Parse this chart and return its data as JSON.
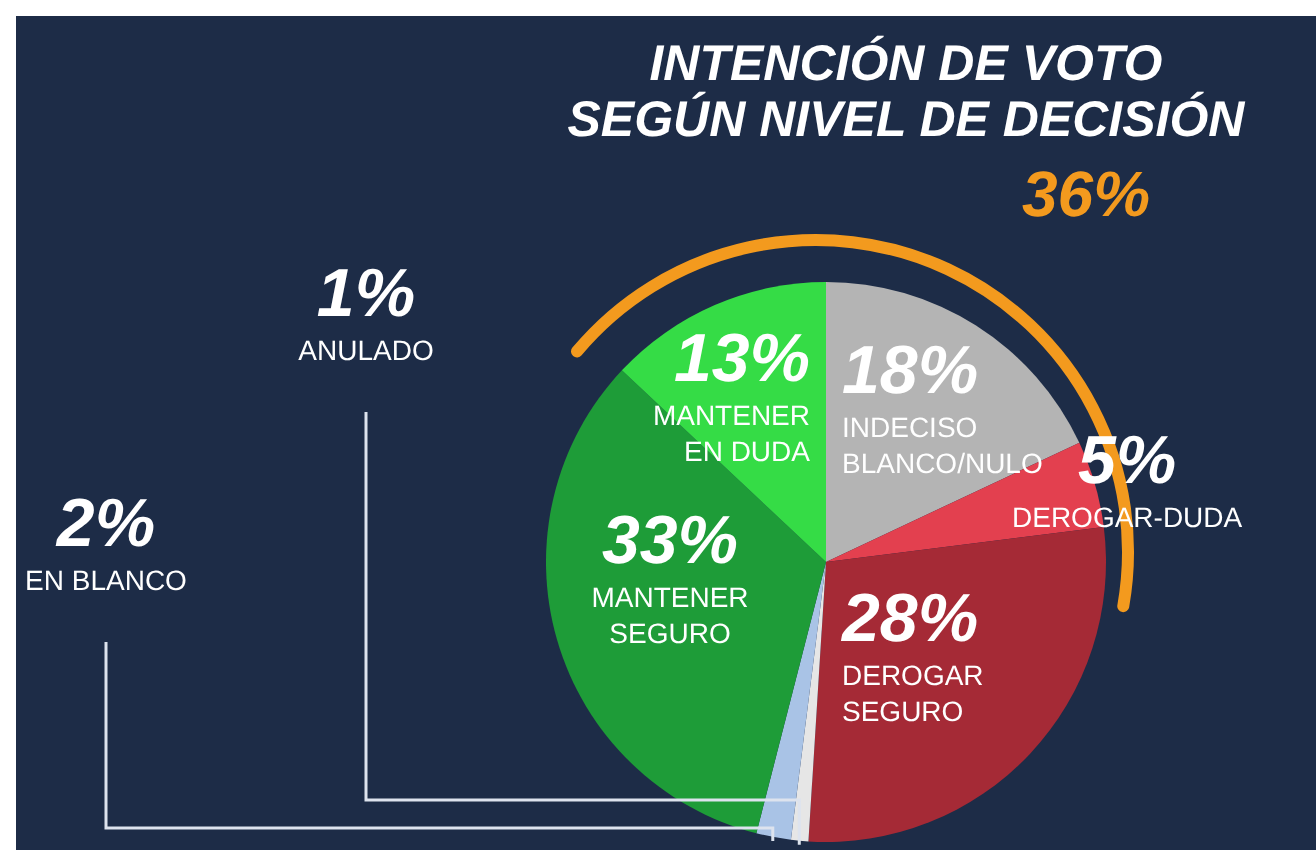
{
  "chart_data": {
    "type": "pie",
    "title": "INTENCIÓN DE VOTO\nSEGÚN NIVEL DE DECISIÓN",
    "categories": [
      "INDECISO\nBLANCO/NULO",
      "DEROGAR-DUDA",
      "DEROGAR\nSEGURO",
      "ANULADO",
      "EN BLANCO",
      "MANTENER\nSEGURO",
      "MANTENER\nEN DUDA"
    ],
    "values": [
      18,
      5,
      28,
      1,
      2,
      33,
      13
    ],
    "value_labels": [
      "18%",
      "5%",
      "28%",
      "1%",
      "2%",
      "33%",
      "13%"
    ],
    "colors": [
      "#b4b4b4",
      "#e3404f",
      "#a52a36",
      "#e6e6e6",
      "#a9c3e6",
      "#1e9c38",
      "#35dc46"
    ],
    "annotations": [
      "36%"
    ]
  }
}
